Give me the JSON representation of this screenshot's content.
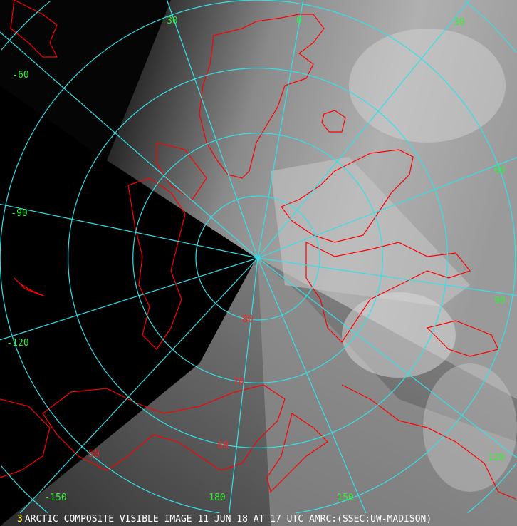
{
  "caption": {
    "frame_number": "3",
    "text": "ARCTIC COMPOSITE VISIBLE IMAGE 11 JUN 18 AT 17 UTC AMRC:(SSEC:UW-MADISON)"
  },
  "colors": {
    "graticule": "#33e0e8",
    "longitude_labels": "#33ee33",
    "latitude_labels": "#ff2020",
    "coastlines": "#ff0000",
    "frame_number": "#ffff33",
    "caption_text": "#ffffff"
  },
  "projection": "polar stereographic, north pole",
  "longitude_labels": [
    "-30",
    "0",
    "30",
    "60",
    "90",
    "120",
    "150",
    "180",
    "-150",
    "-120",
    "-90",
    "-60"
  ],
  "longitude_values": [
    -30,
    0,
    30,
    60,
    90,
    120,
    150,
    180,
    -150,
    -120,
    -90,
    -60
  ],
  "latitude_labels": [
    "80",
    "70",
    "60",
    "50"
  ],
  "latitude_values": [
    80,
    70,
    60,
    50
  ]
}
